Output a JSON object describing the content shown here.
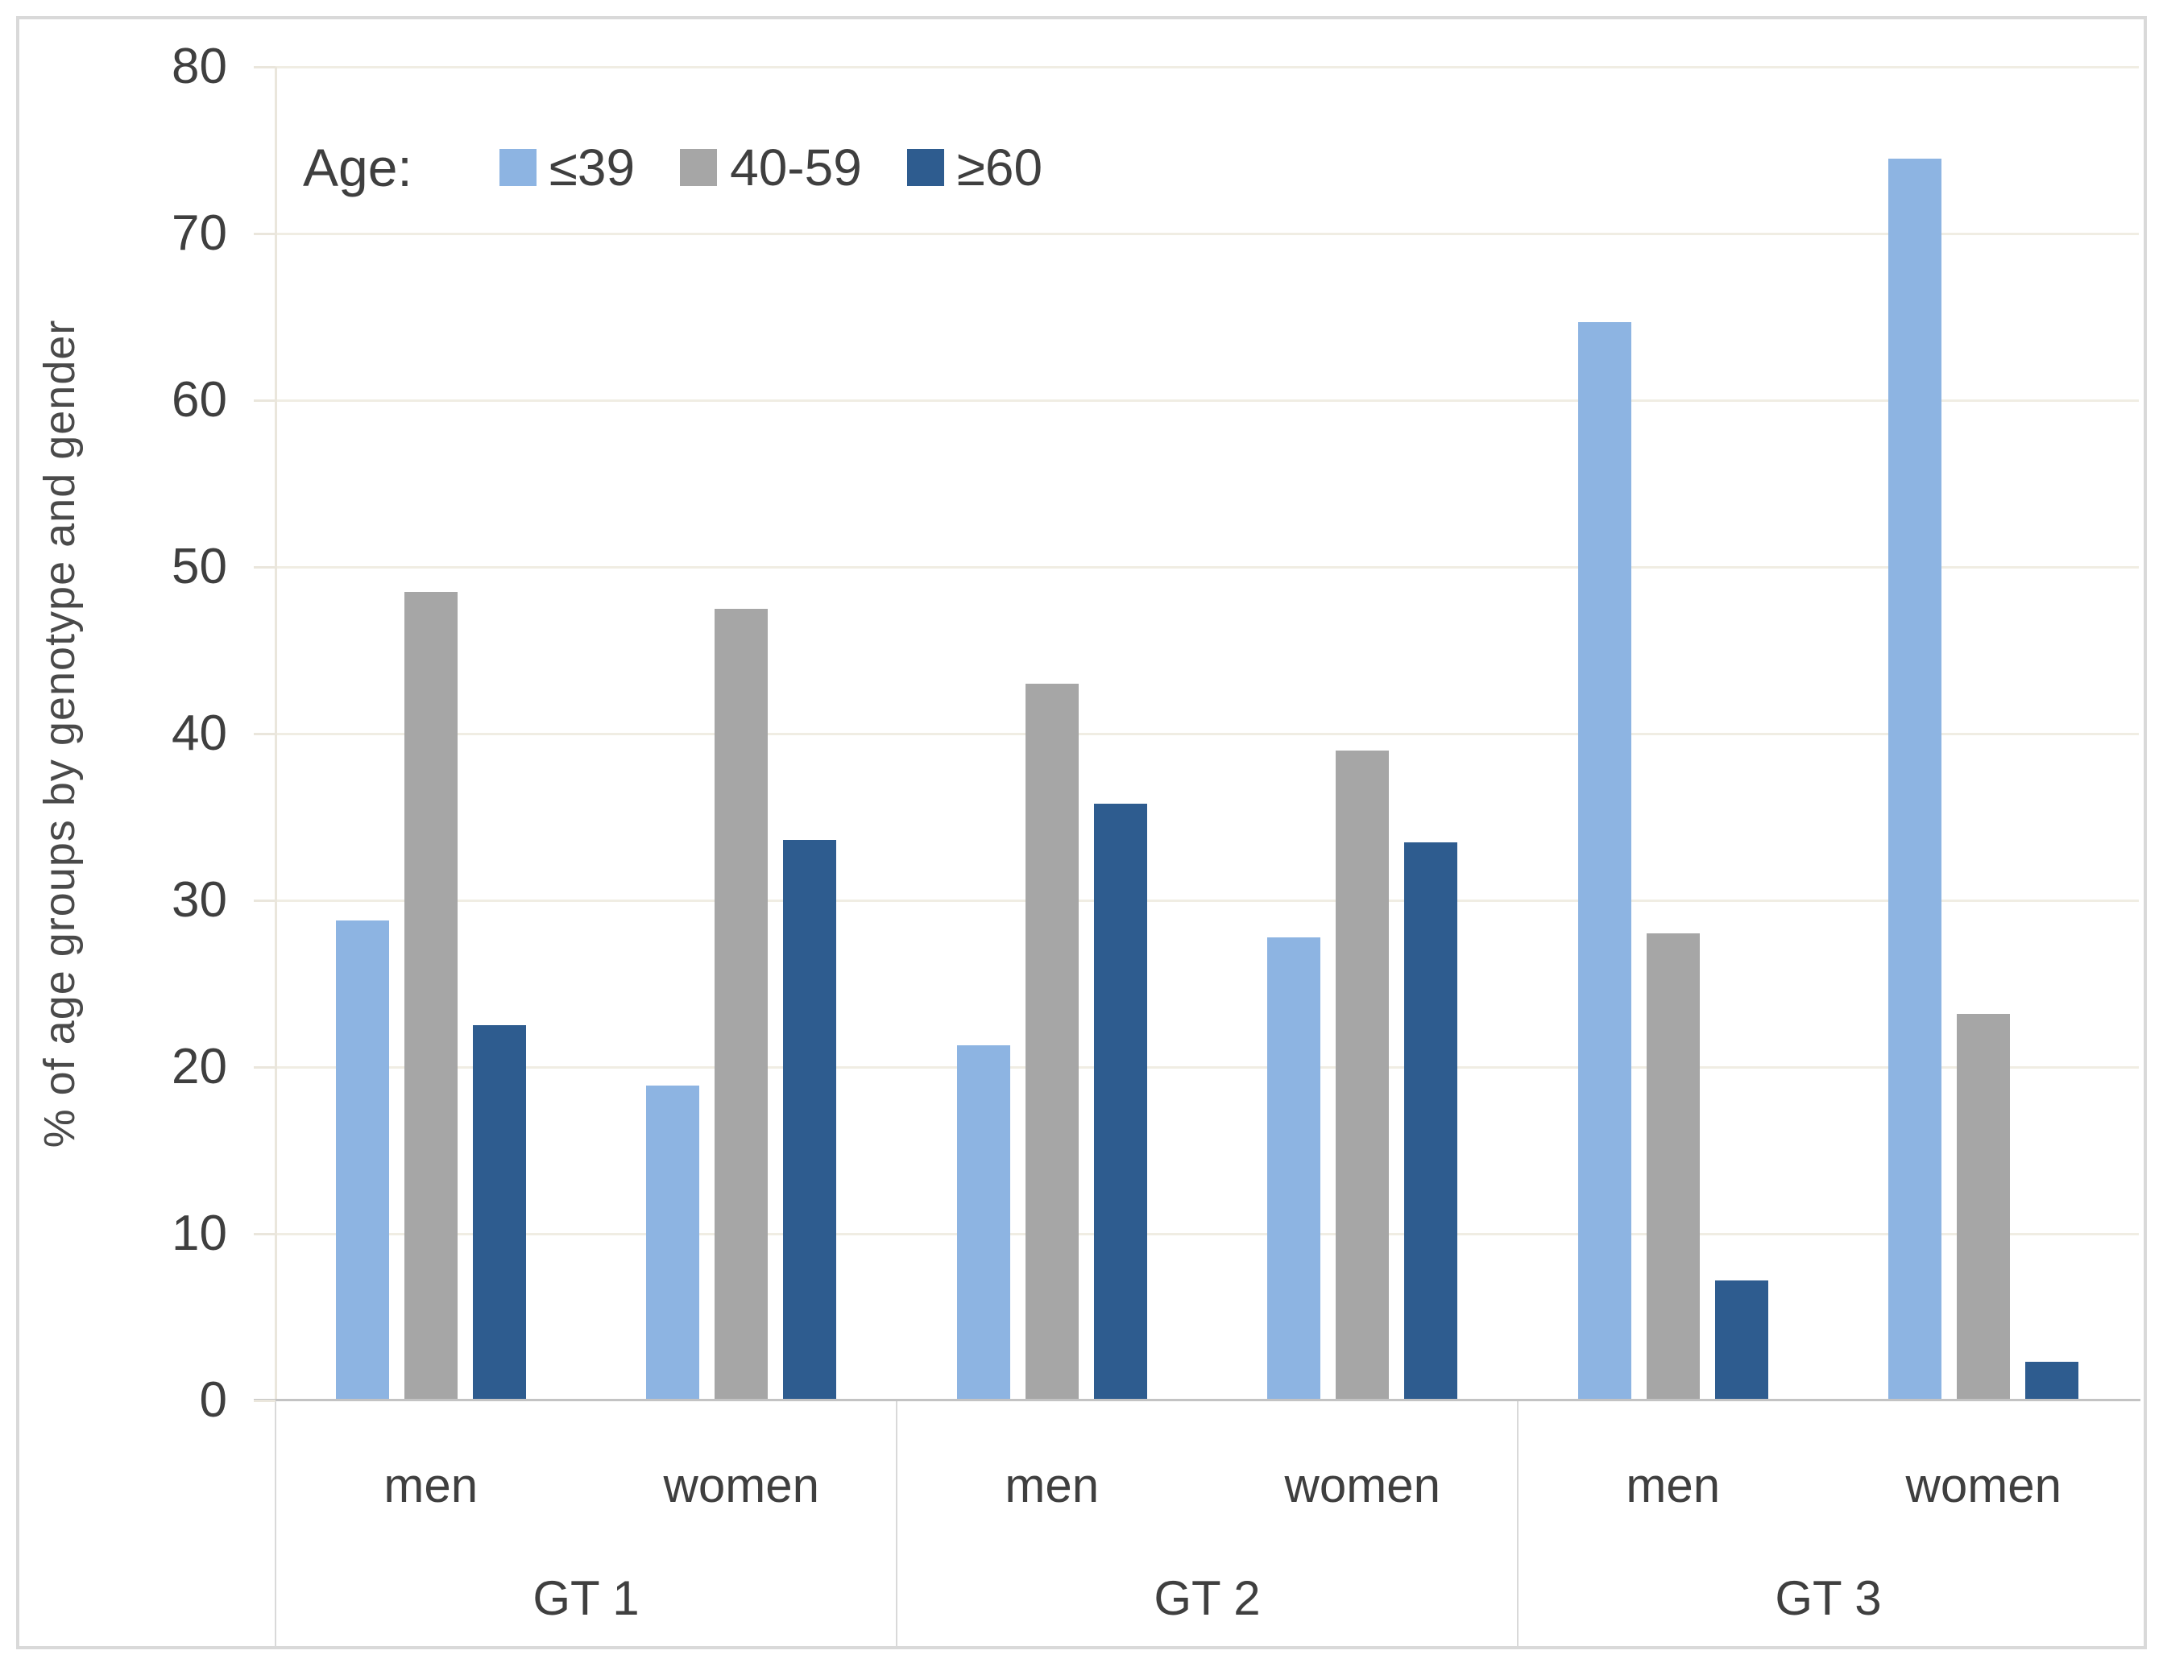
{
  "legend": {
    "title": "Age:"
  },
  "chart_data": {
    "type": "bar",
    "title": "",
    "xlabel": "",
    "ylabel": "% of age groups by genotype and gender",
    "ylim": [
      0,
      80
    ],
    "yticks": [
      0,
      10,
      20,
      30,
      40,
      50,
      60,
      70,
      80
    ],
    "grid": "horizontal",
    "legend_title": "Age:",
    "legend_position": "top-left-inside",
    "group_labels": [
      "GT 1",
      "GT 2",
      "GT 3"
    ],
    "categories": [
      "men",
      "women",
      "men",
      "women",
      "men",
      "women"
    ],
    "series": [
      {
        "name": "≤39",
        "color": "#8DB4E2",
        "values": [
          28.8,
          18.9,
          21.3,
          27.8,
          64.7,
          74.5
        ]
      },
      {
        "name": "40-59",
        "color": "#A6A6A6",
        "values": [
          48.5,
          47.5,
          43.0,
          39.0,
          28.0,
          23.2
        ]
      },
      {
        "name": "≥60",
        "color": "#2E5C8F",
        "values": [
          22.5,
          33.6,
          35.8,
          33.5,
          7.2,
          2.3
        ]
      }
    ],
    "colors": {
      "gridline": "#F0EDE3",
      "axis_line": "#C3C3C3",
      "table_line": "#D9D9D9",
      "text": "#3F3F3F"
    }
  }
}
